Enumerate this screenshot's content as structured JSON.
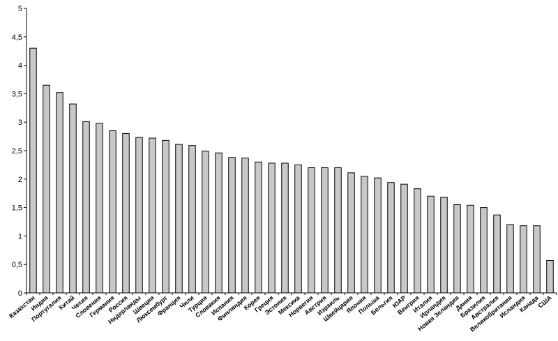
{
  "chart_data": {
    "type": "bar",
    "title": "",
    "xlabel": "",
    "ylabel": "",
    "ylim": [
      0,
      5
    ],
    "yticks": [
      "0",
      "0,5",
      "1",
      "1,5",
      "2",
      "2,5",
      "3",
      "3,5",
      "4",
      "4,5",
      "5"
    ],
    "grid": false,
    "legend": "none",
    "bar_color": "#c8c8c8",
    "categories": [
      "Казахстан",
      "Индия",
      "Португалия",
      "Китай",
      "Чехия",
      "Словения",
      "Германия",
      "Россия",
      "Нидерланды",
      "Швеция",
      "Люксембург",
      "Франция",
      "Чили",
      "Турция",
      "Словакия",
      "Испания",
      "Финляндия",
      "Корея",
      "Греция",
      "Эстония",
      "Мексика",
      "Норвегия",
      "Австрия",
      "Израиль",
      "Швейцария",
      "Япония",
      "Польша",
      "Бельгия",
      "ЮАР",
      "Венгрия",
      "Италия",
      "Ирландия",
      "Новая Зеландия",
      "Дания",
      "Бразилия",
      "Австралия",
      "Великобритания",
      "Исландия",
      "Канада",
      "США"
    ],
    "values": [
      4.3,
      3.65,
      3.52,
      3.32,
      3.01,
      2.98,
      2.85,
      2.8,
      2.73,
      2.72,
      2.68,
      2.61,
      2.59,
      2.49,
      2.46,
      2.38,
      2.37,
      2.3,
      2.28,
      2.28,
      2.25,
      2.2,
      2.2,
      2.2,
      2.11,
      2.05,
      2.02,
      1.94,
      1.91,
      1.83,
      1.7,
      1.68,
      1.55,
      1.54,
      1.5,
      1.37,
      1.2,
      1.18,
      1.18,
      0.57
    ]
  }
}
